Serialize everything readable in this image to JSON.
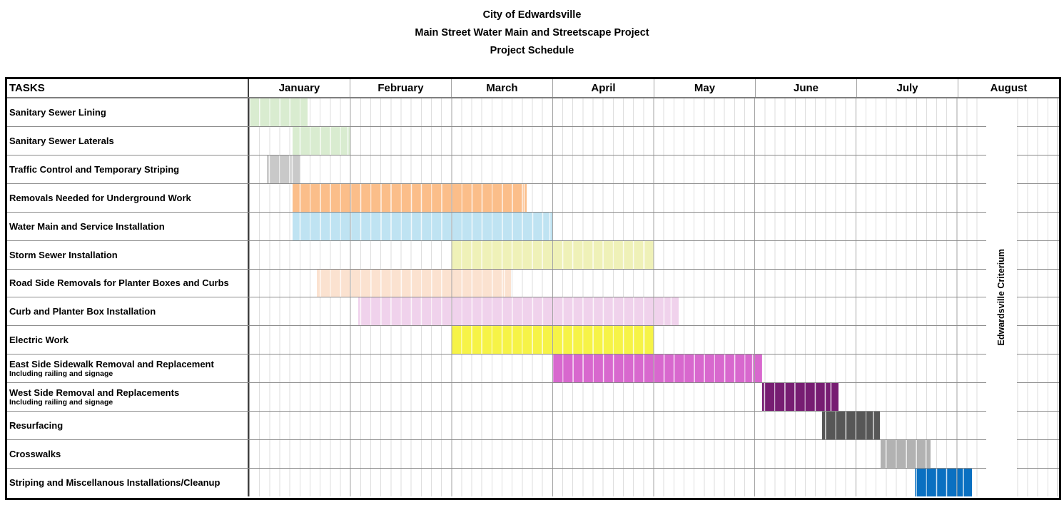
{
  "title": {
    "line1": "City of Edwardsville",
    "line2": "Main Street Water Main and Streetscape Project",
    "line3": "Project Schedule"
  },
  "chart_data": {
    "type": "gantt",
    "tasks_header": "TASKS",
    "months": [
      "January",
      "February",
      "March",
      "April",
      "May",
      "June",
      "July",
      "August"
    ],
    "cells_per_month": 10,
    "axis_range_months": [
      0,
      8
    ],
    "annotation": {
      "label": "Edwardsville Criterium",
      "start": 7.28,
      "end": 7.58
    },
    "tasks": [
      {
        "name": "Sanitary Sewer Lining",
        "subtext": "",
        "start": 0.0,
        "end": 0.58,
        "color": "#D9ECD0"
      },
      {
        "name": "Sanitary Sewer Laterals",
        "subtext": "",
        "start": 0.43,
        "end": 1.0,
        "color": "#D9ECD0"
      },
      {
        "name": "Traffic Control and Temporary Striping",
        "subtext": "",
        "start": 0.18,
        "end": 0.5,
        "color": "#C9C9C9"
      },
      {
        "name": "Removals Needed for Underground Work",
        "subtext": "",
        "start": 0.43,
        "end": 2.75,
        "color": "#FBBE8A"
      },
      {
        "name": "Water Main and Service Installation",
        "subtext": "",
        "start": 0.43,
        "end": 3.0,
        "color": "#BFE3F2"
      },
      {
        "name": "Storm Sewer Installation",
        "subtext": "",
        "start": 2.0,
        "end": 4.0,
        "color": "#EFF1B8"
      },
      {
        "name": "Road Side Removals for Planter Boxes and Curbs",
        "subtext": "",
        "start": 0.67,
        "end": 2.59,
        "color": "#FBE2D0"
      },
      {
        "name": "Curb and Planter Box Installation",
        "subtext": "",
        "start": 1.08,
        "end": 4.25,
        "color": "#F0D2EC"
      },
      {
        "name": "Electric Work",
        "subtext": "",
        "start": 2.0,
        "end": 4.0,
        "color": "#F6F347"
      },
      {
        "name": "East Side Sidewalk Removal and Replacement",
        "subtext": "Including railing and signage",
        "start": 3.0,
        "end": 5.08,
        "color": "#D868CE"
      },
      {
        "name": "West Side Removal and Replacements",
        "subtext": "Including railing and signage",
        "start": 5.08,
        "end": 5.83,
        "color": "#771D72"
      },
      {
        "name": "Resurfacing",
        "subtext": "",
        "start": 5.67,
        "end": 6.24,
        "color": "#575757"
      },
      {
        "name": "Crosswalks",
        "subtext": "",
        "start": 6.25,
        "end": 6.74,
        "color": "#B2B2B2"
      },
      {
        "name": "Striping and Miscellanous Installations/Cleanup",
        "subtext": "",
        "start": 6.59,
        "end": 7.15,
        "color": "#0A70C1"
      }
    ]
  },
  "colors": {
    "grid_cell_line": "#DEDEDE",
    "grid_month_line": "#A3A3A3",
    "row_border": "#8A8A8A",
    "table_border": "#000000",
    "background": "#FFFFFF"
  }
}
